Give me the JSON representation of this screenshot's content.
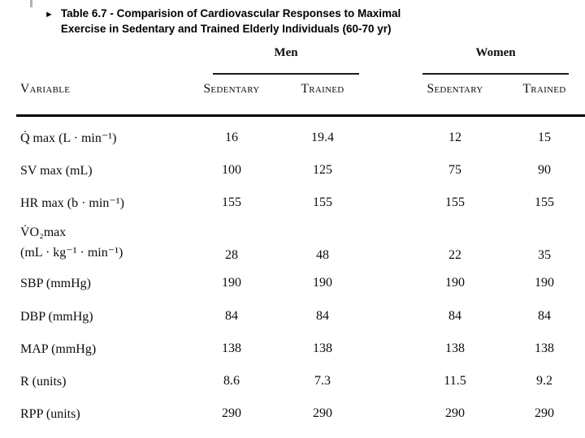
{
  "slide": {
    "bullet": "►",
    "title_lines": [
      "Table 6.7 - Comparision of Cardiovascular Responses to Maximal",
      "Exercise in Sedentary and Trained Elderly Individuals (60-70 yr)"
    ]
  },
  "table": {
    "group_headers": {
      "men": "Men",
      "women": "Women"
    },
    "column_headers": {
      "variable": "Variable",
      "men_sedentary": "Sedentary",
      "men_trained": "Trained",
      "women_sedentary": "Sedentary",
      "women_trained": "Trained"
    },
    "rows": [
      {
        "label_lines": [
          "Q̇ max (L · min⁻¹)"
        ],
        "values": [
          "16",
          "19.4",
          "12",
          "15"
        ]
      },
      {
        "label_lines": [
          "SV max (mL)"
        ],
        "values": [
          "100",
          "125",
          "75",
          "90"
        ]
      },
      {
        "label_lines": [
          "HR max (b · min⁻¹)"
        ],
        "values": [
          "155",
          "155",
          "155",
          "155"
        ]
      },
      {
        "label_lines": [
          "V̇O₂max",
          "(mL · kg⁻¹ · min⁻¹)"
        ],
        "values": [
          "28",
          "48",
          "22",
          "35"
        ]
      },
      {
        "label_lines": [
          "SBP (mmHg)"
        ],
        "values": [
          "190",
          "190",
          "190",
          "190"
        ]
      },
      {
        "label_lines": [
          "DBP (mmHg)"
        ],
        "values": [
          "84",
          "84",
          "84",
          "84"
        ]
      },
      {
        "label_lines": [
          "MAP (mmHg)"
        ],
        "values": [
          "138",
          "138",
          "138",
          "138"
        ]
      },
      {
        "label_lines": [
          "R (units)"
        ],
        "values": [
          "8.6",
          "7.3",
          "11.5",
          "9.2"
        ]
      },
      {
        "label_lines": [
          "RPP (units)"
        ],
        "values": [
          "290",
          "290",
          "290",
          "290"
        ]
      }
    ]
  },
  "chart_data": {
    "type": "table",
    "title": "Table 6.7 - Comparision of Cardiovascular Responses to Maximal Exercise in Sedentary and Trained Elderly Individuals (60-70 yr)",
    "column_groups": [
      "Men",
      "Women"
    ],
    "columns": [
      "Variable",
      "Men Sedentary",
      "Men Trained",
      "Women Sedentary",
      "Women Trained"
    ],
    "rows": [
      [
        "Q̇ max (L·min⁻¹)",
        16,
        19.4,
        12,
        15
      ],
      [
        "SV max (mL)",
        100,
        125,
        75,
        90
      ],
      [
        "HR max (b·min⁻¹)",
        155,
        155,
        155,
        155
      ],
      [
        "V̇O₂max (mL·kg⁻¹·min⁻¹)",
        28,
        48,
        22,
        35
      ],
      [
        "SBP (mmHg)",
        190,
        190,
        190,
        190
      ],
      [
        "DBP (mmHg)",
        84,
        84,
        84,
        84
      ],
      [
        "MAP (mmHg)",
        138,
        138,
        138,
        138
      ],
      [
        "R (units)",
        8.6,
        7.3,
        11.5,
        9.2
      ],
      [
        "RPP (units)",
        290,
        290,
        290,
        290
      ]
    ]
  }
}
